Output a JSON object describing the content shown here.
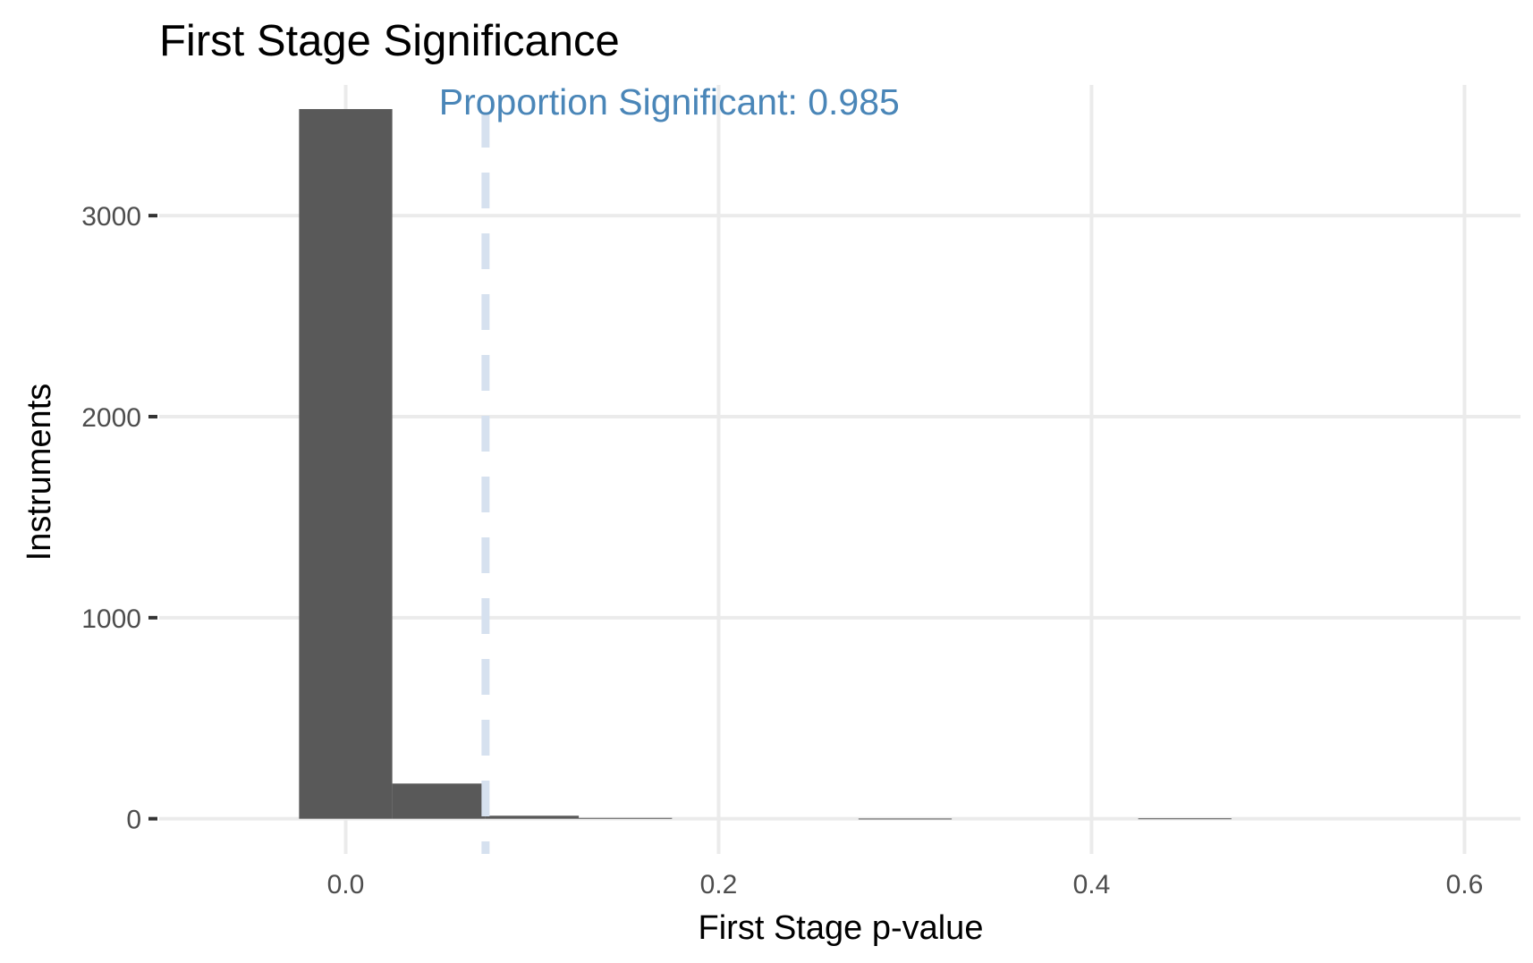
{
  "chart_data": {
    "type": "bar",
    "title": "First Stage Significance",
    "xlabel": "First Stage p-value",
    "ylabel": "Instruments",
    "xlim": [
      -0.1,
      0.63
    ],
    "ylim": [
      -175,
      3650
    ],
    "x_ticks": [
      {
        "value": 0.0,
        "label": "0.0"
      },
      {
        "value": 0.2,
        "label": "0.2"
      },
      {
        "value": 0.4,
        "label": "0.4"
      },
      {
        "value": 0.6,
        "label": "0.6"
      }
    ],
    "y_ticks": [
      {
        "value": 0,
        "label": "0"
      },
      {
        "value": 1000,
        "label": "1000"
      },
      {
        "value": 2000,
        "label": "2000"
      },
      {
        "value": 3000,
        "label": "3000"
      }
    ],
    "bins": [
      {
        "x0": -0.025,
        "x1": 0.025,
        "count": 3530
      },
      {
        "x0": 0.025,
        "x1": 0.075,
        "count": 175
      },
      {
        "x0": 0.075,
        "x1": 0.125,
        "count": 15
      },
      {
        "x0": 0.125,
        "x1": 0.175,
        "count": 4
      },
      {
        "x0": 0.275,
        "x1": 0.325,
        "count": 1
      },
      {
        "x0": 0.425,
        "x1": 0.475,
        "count": 2
      }
    ],
    "threshold_line": {
      "x": 0.075,
      "color": "#d6e1ef",
      "style": "dashed"
    },
    "annotation": {
      "text": "Proportion Significant: 0.985",
      "x": 0.05,
      "color": "#4a86b8"
    },
    "bar_color": "#595959",
    "grid": true,
    "legend": "none"
  }
}
